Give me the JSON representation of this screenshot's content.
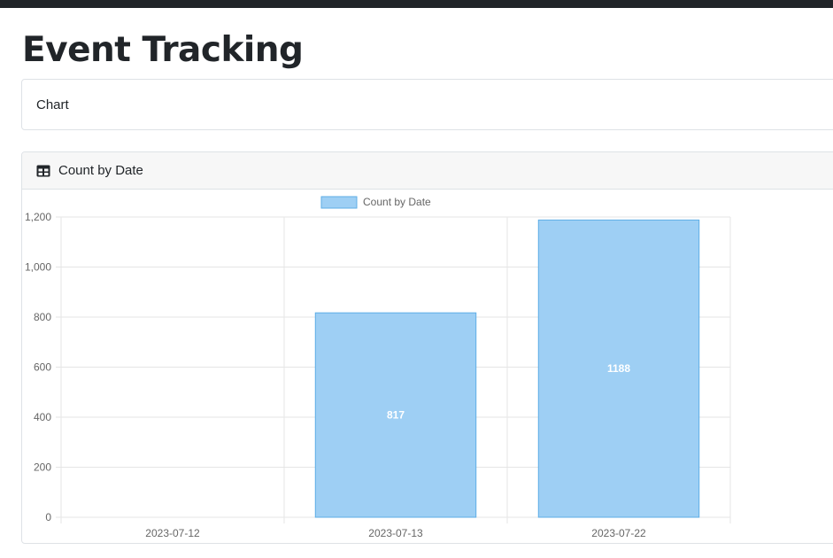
{
  "page": {
    "title": "Event Tracking"
  },
  "chart_panel": {
    "label": "Chart"
  },
  "card": {
    "title": "Count by Date",
    "icon": "table-icon"
  },
  "colors": {
    "bar_fill": "#9ecff4",
    "bar_stroke": "#5eaee6",
    "grid": "#e5e5e5",
    "tick_text": "#666666"
  },
  "chart_data": {
    "type": "bar",
    "categories": [
      "2023-07-12",
      "2023-07-13",
      "2023-07-22"
    ],
    "series": [
      {
        "name": "Count by Date",
        "values": [
          0,
          817,
          1188
        ]
      }
    ],
    "data_labels": [
      "",
      "817",
      "1188"
    ],
    "yticks": [
      "0",
      "200",
      "400",
      "600",
      "800",
      "1,000",
      "1,200"
    ],
    "ylim": [
      0,
      1200
    ],
    "grid": true,
    "legend_position": "top"
  }
}
